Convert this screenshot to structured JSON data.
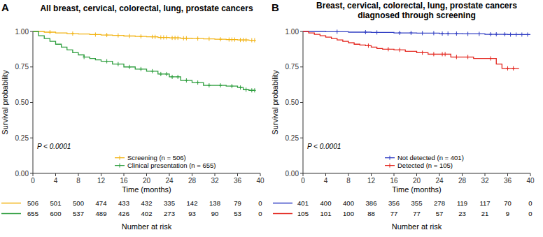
{
  "chart_data": [
    {
      "type": "step",
      "panel_label": "A",
      "title": "All breast, cervical, colorectal, lung, prostate cancers",
      "x_label": "Time (months)",
      "y_label": "Survival probability",
      "annotation": "P < 0.0001",
      "risk_table_title": "Number at risk",
      "legend": "lower center",
      "xlim": [
        0,
        40
      ],
      "ylim": [
        0,
        1
      ],
      "xticks": [
        0,
        4,
        8,
        12,
        16,
        20,
        24,
        28,
        32,
        36,
        40
      ],
      "yticks": [
        {
          "value": 0,
          "label": "0.00"
        },
        {
          "value": 0.25,
          "label": "0.25"
        },
        {
          "value": 0.5,
          "label": "0.50"
        },
        {
          "value": 0.75,
          "label": "0.75"
        },
        {
          "value": 1,
          "label": "1.00"
        }
      ],
      "series": [
        {
          "name": "Screening (n = 506)",
          "color": "#f2b416",
          "marker": "plus",
          "x": [
            0,
            2,
            4,
            6,
            8,
            10,
            12,
            14,
            16,
            18,
            20,
            22,
            24,
            26,
            28,
            30,
            32,
            34,
            36,
            38,
            39
          ],
          "values": [
            1,
            0.995,
            0.99,
            0.985,
            0.982,
            0.978,
            0.975,
            0.972,
            0.968,
            0.965,
            0.962,
            0.958,
            0.955,
            0.952,
            0.95,
            0.948,
            0.945,
            0.943,
            0.94,
            0.938,
            0.938
          ],
          "censored": [
            3,
            7,
            11,
            13,
            15,
            17,
            19,
            21,
            21.5,
            22.5,
            23,
            23.5,
            24.5,
            25,
            25.5,
            26.5,
            27,
            29,
            31,
            33,
            34.5,
            35,
            35.5,
            36.5,
            37,
            37.5,
            38.5,
            39
          ],
          "at_risk": [
            506,
            501,
            500,
            474,
            433,
            432,
            335,
            142,
            138,
            79,
            0
          ]
        },
        {
          "name": "Clinical presentation (n = 655)",
          "color": "#2e9e3e",
          "marker": "plus",
          "x": [
            0,
            1,
            2,
            3,
            4,
            5,
            6,
            7,
            8,
            9,
            10,
            11,
            12,
            14,
            16,
            18,
            20,
            22,
            24,
            26,
            28,
            30,
            32,
            34,
            36,
            37,
            38,
            39
          ],
          "values": [
            1,
            0.97,
            0.95,
            0.93,
            0.91,
            0.89,
            0.87,
            0.85,
            0.835,
            0.82,
            0.81,
            0.8,
            0.79,
            0.77,
            0.75,
            0.735,
            0.72,
            0.7,
            0.68,
            0.655,
            0.64,
            0.62,
            0.62,
            0.615,
            0.605,
            0.59,
            0.585,
            0.585
          ],
          "censored": [
            9,
            13,
            15,
            17,
            19,
            21,
            22.5,
            23.5,
            24.5,
            25.5,
            27,
            29,
            31,
            33,
            35,
            36.5,
            37.5,
            38.5,
            39
          ],
          "at_risk": [
            655,
            600,
            537,
            489,
            426,
            402,
            273,
            93,
            90,
            53,
            0
          ]
        }
      ]
    },
    {
      "type": "step",
      "panel_label": "B",
      "title": "Breast, cervical, colorectal, lung, prostate cancers diagnosed through screening",
      "x_label": "Time (months)",
      "y_label": "Survival probability",
      "annotation": "P < 0.0001",
      "risk_table_title": "Number at risk",
      "legend": "lower center",
      "xlim": [
        0,
        40
      ],
      "ylim": [
        0,
        1
      ],
      "xticks": [
        0,
        4,
        8,
        12,
        16,
        20,
        24,
        28,
        32,
        36,
        40
      ],
      "yticks": [
        {
          "value": 0,
          "label": "0.00"
        },
        {
          "value": 0.25,
          "label": "0.25"
        },
        {
          "value": 0.5,
          "label": "0.50"
        },
        {
          "value": 0.75,
          "label": "0.75"
        },
        {
          "value": 1,
          "label": "1.00"
        }
      ],
      "series": [
        {
          "name": "Not detected (n = 401)",
          "color": "#3340c4",
          "marker": "plus",
          "x": [
            0,
            4,
            8,
            12,
            16,
            20,
            24,
            28,
            32,
            36,
            40
          ],
          "values": [
            1,
            0.998,
            0.995,
            0.993,
            0.99,
            0.988,
            0.985,
            0.983,
            0.98,
            0.978,
            0.978
          ],
          "censored": [
            6,
            11,
            13,
            17,
            19,
            21,
            23,
            24.5,
            25.5,
            27,
            29,
            31,
            33,
            34,
            35.5,
            36.5,
            37.5,
            38.5,
            39.5
          ],
          "at_risk": [
            401,
            400,
            400,
            386,
            356,
            355,
            278,
            119,
            117,
            70,
            0
          ]
        },
        {
          "name": "Detected (n = 105)",
          "color": "#e3241c",
          "marker": "plus",
          "x": [
            0,
            1,
            2,
            3,
            4,
            5,
            6,
            7,
            8,
            9,
            10,
            11,
            12,
            13,
            14,
            16,
            18,
            20,
            22,
            24,
            26,
            28,
            30,
            32,
            34,
            35,
            36,
            38
          ],
          "values": [
            1,
            0.99,
            0.98,
            0.97,
            0.96,
            0.95,
            0.94,
            0.93,
            0.92,
            0.91,
            0.905,
            0.9,
            0.89,
            0.88,
            0.875,
            0.87,
            0.86,
            0.85,
            0.84,
            0.84,
            0.82,
            0.82,
            0.81,
            0.81,
            0.77,
            0.74,
            0.74,
            0.74
          ],
          "censored": [
            11.5,
            15,
            17,
            21,
            23,
            24.5,
            25,
            27,
            29,
            33,
            36,
            37
          ],
          "at_risk": [
            105,
            101,
            100,
            88,
            77,
            77,
            57,
            23,
            21,
            9,
            0
          ]
        }
      ]
    }
  ]
}
